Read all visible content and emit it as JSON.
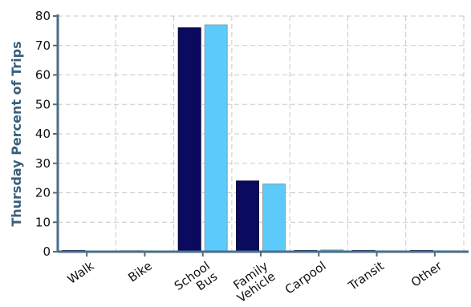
{
  "chart_data": {
    "type": "bar",
    "title": "",
    "xlabel": "",
    "ylabel": "Thursday Percent of Trips",
    "ylim": [
      0,
      80
    ],
    "yticks": [
      0,
      10,
      20,
      30,
      40,
      50,
      60,
      70,
      80
    ],
    "grid": true,
    "legend": "none",
    "categories": [
      [
        "Walk"
      ],
      [
        "Bike"
      ],
      [
        "School",
        "Bus"
      ],
      [
        "Family",
        "Vehicle"
      ],
      [
        "Carpool"
      ],
      [
        "Transit"
      ],
      [
        "Other"
      ]
    ],
    "series": [
      {
        "values": [
          0.4,
          0.3,
          76,
          24,
          0.4,
          0.4,
          0.4
        ],
        "color": "#0a0a5e"
      },
      {
        "values": [
          0.2,
          0.2,
          77,
          23,
          0.6,
          0.3,
          0.3
        ],
        "color": "#5ccafa"
      }
    ]
  }
}
